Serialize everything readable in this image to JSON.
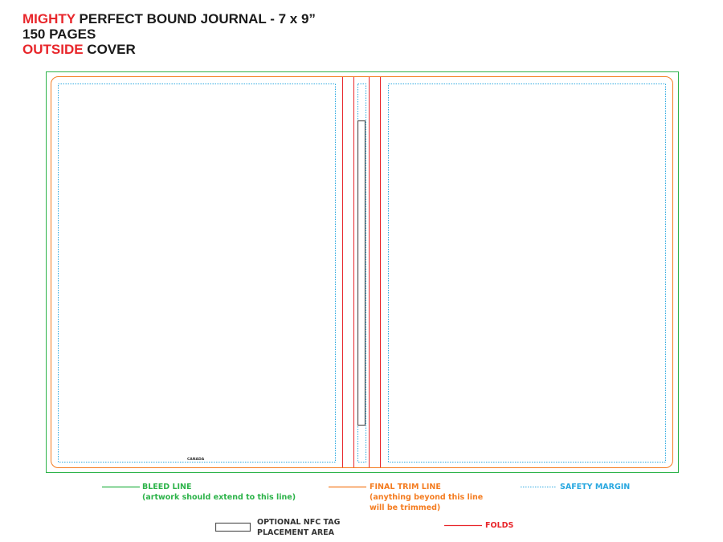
{
  "title": {
    "line1_accent": "MIGHTY",
    "line1_rest": " PERFECT BOUND JOURNAL - 7 x 9”",
    "line2": "150 PAGES",
    "line3_accent": "OUTSIDE",
    "line3_rest": " COVER"
  },
  "cover": {
    "back_cover_mark": "CANADA"
  },
  "legend": {
    "bleed_line": {
      "label": "BLEED LINE",
      "note": "(artwork should extend to this line)"
    },
    "trim_line": {
      "label": "FINAL TRIM LINE",
      "note_line1": "(anything beyond this line",
      "note_line2": "will be trimmed)"
    },
    "safety_margin": {
      "label": "SAFETY MARGIN"
    },
    "nfc_tag": {
      "label_line1": "OPTIONAL NFC TAG",
      "label_line2": "PLACEMENT AREA"
    },
    "folds": {
      "label": "FOLDS"
    }
  },
  "colors": {
    "accent_red": "#e8262b",
    "bleed_green": "#2db34a",
    "trim_orange": "#f47c20",
    "safety_blue": "#29a8e0",
    "fold_red": "#e8262b",
    "nfc_gray": "#555555"
  }
}
